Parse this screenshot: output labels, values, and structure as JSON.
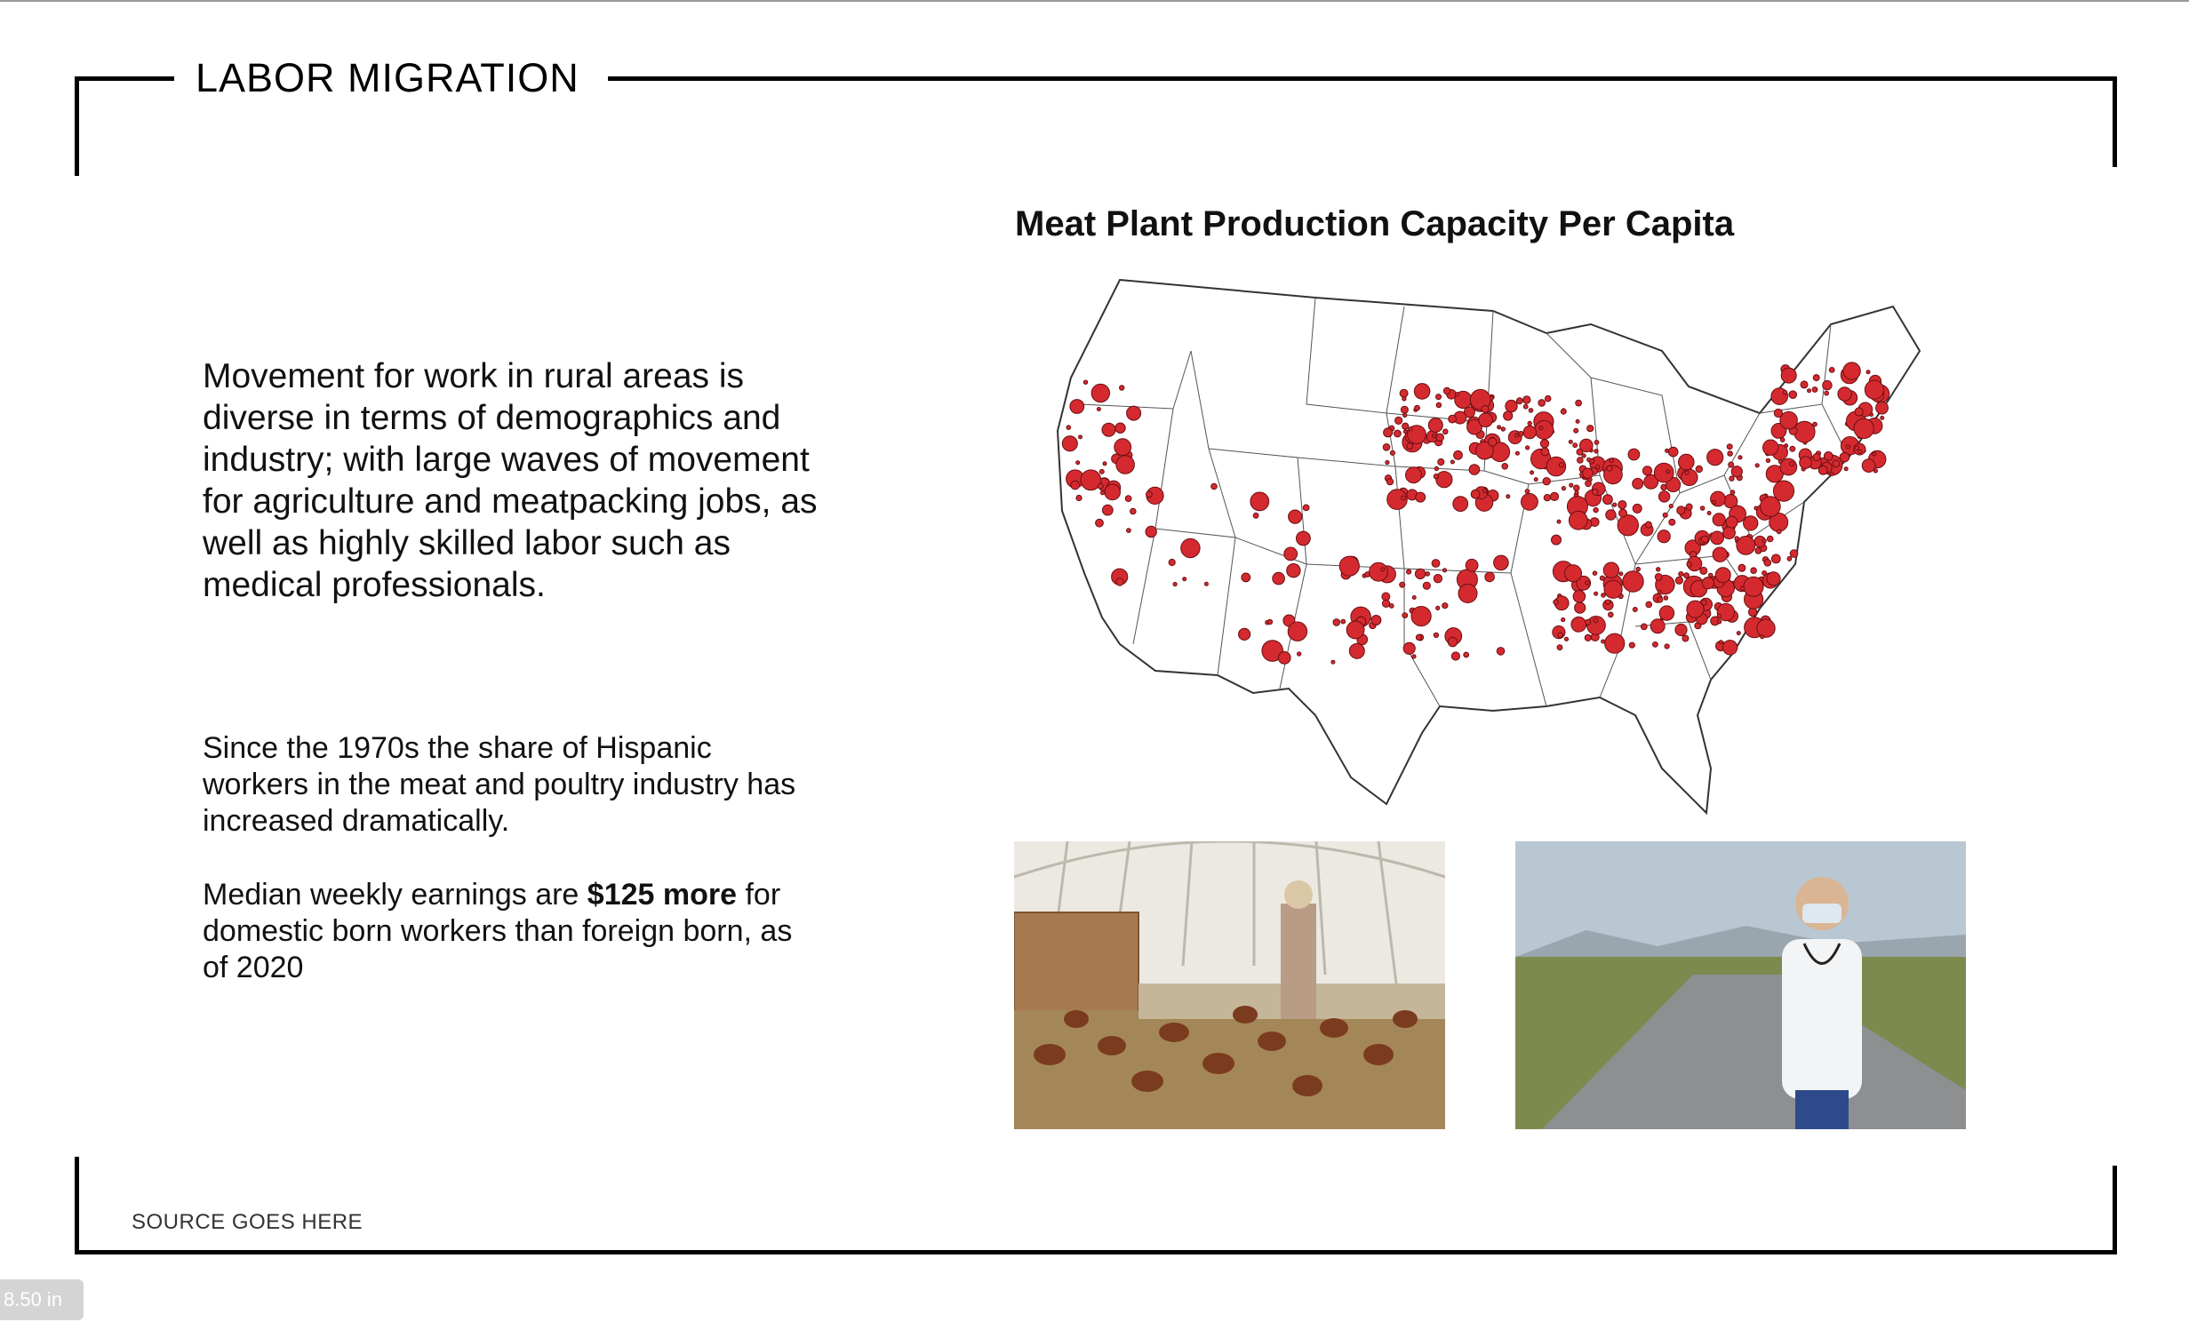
{
  "slide": {
    "title": "LABOR MIGRATION",
    "lead_text": "Movement for work in rural areas is diverse in terms of demographics and industry; with large waves of movement for agriculture and meatpacking jobs, as well as highly skilled labor such as medical professionals.",
    "paragraph_1": "Since the 1970s the share of Hispanic workers in the meat and poultry industry has increased dramatically.",
    "paragraph_2": {
      "prefix": "Median weekly earnings are ",
      "bold": "$125 more",
      "suffix": " for domestic born workers than foreign born, as of 2020"
    },
    "map": {
      "title": "Meat Plant Production Capacity Per Capita",
      "marker_color": "#d42a2f",
      "marker_stroke": "#6a0f12"
    },
    "photos": [
      {
        "name": "chicken-farm-photo"
      },
      {
        "name": "medical-worker-photo"
      }
    ],
    "source": "SOURCE GOES HERE"
  },
  "viewer": {
    "page_size": "8.50 in"
  },
  "colors": {
    "frame": "#000000",
    "text": "#111111"
  }
}
